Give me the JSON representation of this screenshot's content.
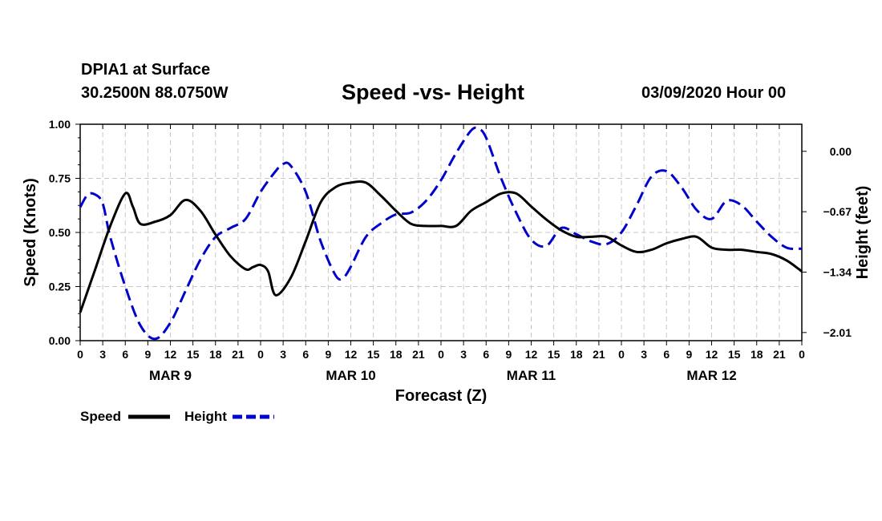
{
  "header": {
    "station": "DPIA1 at Surface",
    "coords": "30.2500N 88.0750W",
    "title": "Speed -vs- Height",
    "run": "03/09/2020 Hour 00"
  },
  "chart_data": {
    "type": "line",
    "title": "Speed -vs- Height",
    "xlabel": "Forecast (Z)",
    "ylabel": "Speed (Knots)",
    "y2label": "Height (feet)",
    "xlim": [
      0,
      96
    ],
    "ylim": [
      0,
      1
    ],
    "y2lim": [
      -2.1,
      0.3
    ],
    "grid": true,
    "x_tick_labels": [
      "0",
      "3",
      "6",
      "9",
      "12",
      "15",
      "18",
      "21",
      "0",
      "3",
      "6",
      "9",
      "12",
      "15",
      "18",
      "21",
      "0",
      "3",
      "6",
      "9",
      "12",
      "15",
      "18",
      "21",
      "0",
      "3",
      "6",
      "9",
      "12",
      "15",
      "18",
      "21",
      "0"
    ],
    "y_ticks": [
      "0.00",
      "0.25",
      "0.50",
      "0.75",
      "1.00"
    ],
    "y2_ticks": [
      {
        "value": 0.0,
        "label": "0.00"
      },
      {
        "value": -0.67,
        "label": "−0.67"
      },
      {
        "value": -1.34,
        "label": "−1.34"
      },
      {
        "value": -2.01,
        "label": "−2.01"
      }
    ],
    "day_labels": [
      {
        "hour": 12,
        "label": "MAR 9"
      },
      {
        "hour": 36,
        "label": "MAR 10"
      },
      {
        "hour": 60,
        "label": "MAR 11"
      },
      {
        "hour": 84,
        "label": "MAR 12"
      }
    ],
    "series": [
      {
        "name": "Speed",
        "axis": "left",
        "color": "#000000",
        "dash": "solid",
        "x": [
          0,
          2,
          4,
          6,
          7,
          8,
          10,
          12,
          14,
          16,
          18,
          20,
          22,
          23,
          24,
          25,
          26,
          28,
          30,
          32,
          34,
          36,
          38,
          40,
          42,
          44,
          46,
          48,
          50,
          52,
          54,
          56,
          58,
          60,
          62,
          64,
          66,
          68,
          70,
          72,
          74,
          76,
          78,
          80,
          82,
          84,
          86,
          88,
          90,
          92,
          94,
          96
        ],
        "values": [
          0.13,
          0.33,
          0.53,
          0.68,
          0.62,
          0.54,
          0.55,
          0.58,
          0.65,
          0.6,
          0.49,
          0.39,
          0.33,
          0.34,
          0.35,
          0.32,
          0.21,
          0.29,
          0.46,
          0.64,
          0.71,
          0.73,
          0.73,
          0.67,
          0.6,
          0.54,
          0.53,
          0.53,
          0.53,
          0.6,
          0.64,
          0.68,
          0.68,
          0.62,
          0.56,
          0.51,
          0.48,
          0.48,
          0.48,
          0.44,
          0.41,
          0.42,
          0.45,
          0.47,
          0.48,
          0.43,
          0.42,
          0.42,
          0.41,
          0.4,
          0.37,
          0.32
        ]
      },
      {
        "name": "Height",
        "axis": "right",
        "color": "#0000cc",
        "dash": "dashed",
        "x": [
          0,
          1,
          2,
          3,
          4,
          6,
          8,
          10,
          12,
          14,
          16,
          18,
          20,
          22,
          24,
          26,
          27,
          28,
          30,
          32,
          34,
          35,
          36,
          38,
          40,
          42,
          44,
          46,
          48,
          50,
          52,
          53,
          54,
          56,
          58,
          60,
          62,
          64,
          66,
          68,
          70,
          72,
          74,
          76,
          78,
          80,
          82,
          84,
          86,
          88,
          90,
          92,
          94,
          96
        ],
        "values": [
          -0.62,
          -0.48,
          -0.48,
          -0.58,
          -0.95,
          -1.5,
          -1.93,
          -2.08,
          -1.9,
          -1.55,
          -1.2,
          -0.95,
          -0.85,
          -0.75,
          -0.45,
          -0.22,
          -0.14,
          -0.16,
          -0.45,
          -1.0,
          -1.38,
          -1.4,
          -1.28,
          -0.95,
          -0.8,
          -0.7,
          -0.68,
          -0.55,
          -0.32,
          -0.02,
          0.23,
          0.25,
          0.15,
          -0.3,
          -0.68,
          -0.98,
          -1.05,
          -0.85,
          -0.92,
          -1.0,
          -1.03,
          -0.9,
          -0.6,
          -0.28,
          -0.22,
          -0.4,
          -0.65,
          -0.75,
          -0.55,
          -0.6,
          -0.78,
          -0.95,
          -1.07,
          -1.08
        ]
      }
    ],
    "legend": [
      {
        "label": "Speed",
        "color": "#000000",
        "dash": "solid"
      },
      {
        "label": "Height",
        "color": "#0000cc",
        "dash": "dashed"
      }
    ]
  }
}
